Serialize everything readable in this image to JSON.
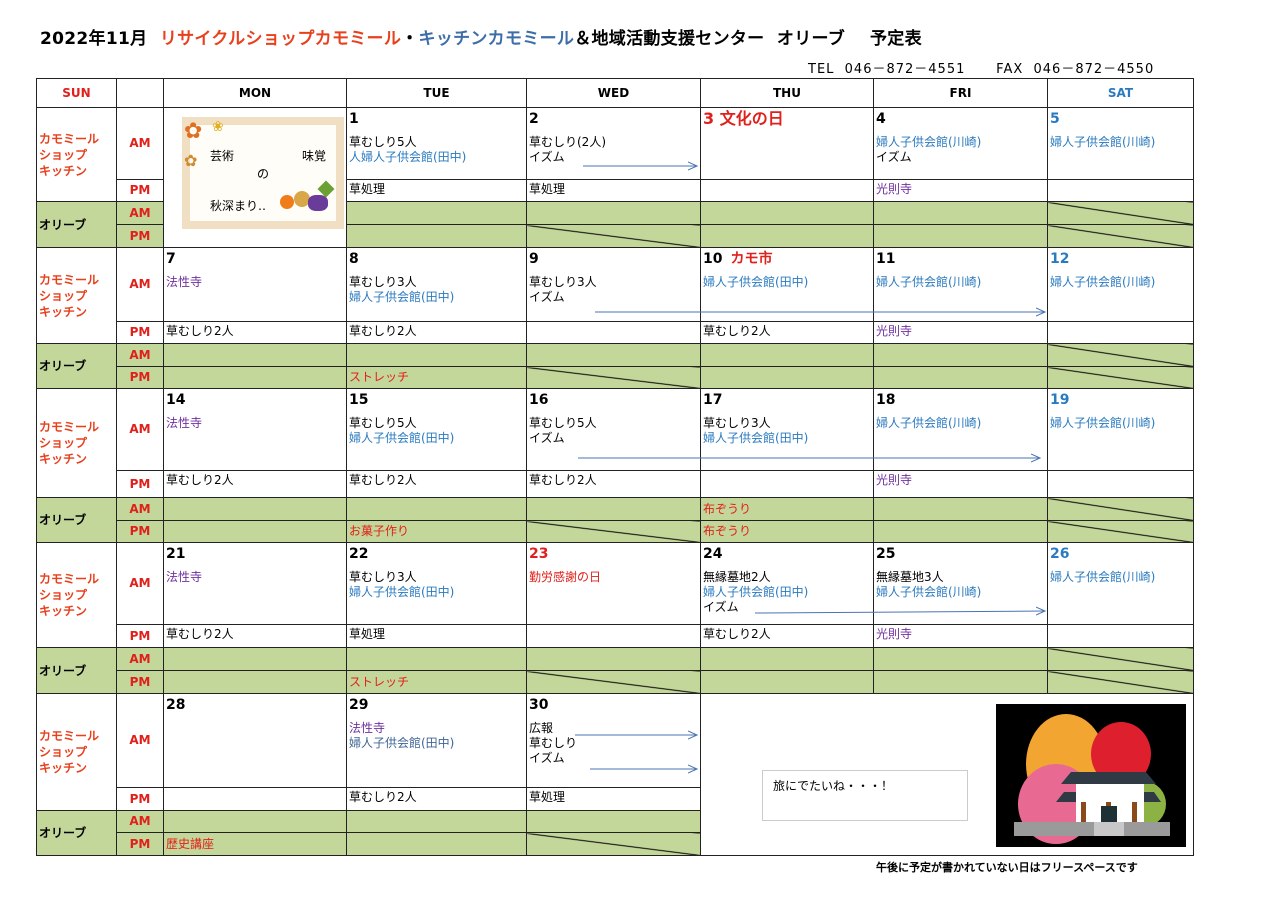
{
  "header": {
    "title_parts": [
      {
        "t": "2022年11月  ",
        "c": "black"
      },
      {
        "t": "リサイクルショップカモミール",
        "c": "orange"
      },
      {
        "t": "・",
        "c": "black"
      },
      {
        "t": "キッチンカモミール",
        "c": "titleblue"
      },
      {
        "t": "＆地域活動支援センター  オリーブ    予定表",
        "c": "black"
      }
    ],
    "contact": "TEL  046－872－4551      FAX  046－872－4550"
  },
  "colors": {
    "black": "#000000",
    "orange": "#e8401c",
    "titleblue": "#3d6ea8",
    "blue": "#2a7ac0",
    "slate": "#3f6596",
    "purple": "#7030a0",
    "red": "#e0201a",
    "olive": "#c4d79b"
  },
  "columns": [
    {
      "label": "SUN",
      "c": "red"
    },
    {
      "label": "",
      "c": "black"
    },
    {
      "label": "MON",
      "c": "black"
    },
    {
      "label": "TUE",
      "c": "black"
    },
    {
      "label": "WED",
      "c": "black"
    },
    {
      "label": "THU",
      "c": "black"
    },
    {
      "label": "FRI",
      "c": "black"
    },
    {
      "label": "SAT",
      "c": "blue"
    }
  ],
  "labels": {
    "kamomile": "カモミール\nショップ\nキッチン",
    "olive": "オリーブ",
    "am": "AM",
    "pm": "PM"
  },
  "decoration": {
    "t1": "芸術",
    "t2": "味覚",
    "t3": "の",
    "t4": "秋深まり‥"
  },
  "weeks": [
    {
      "days": [
        {
          "span": "decoration"
        },
        {
          "date": "1",
          "am": [
            {
              "t": "草むしり5人",
              "c": "black"
            },
            {
              "t": "人婦人子供会館(田中)",
              "c": "blue"
            }
          ],
          "pm": [
            {
              "t": "草処理",
              "c": "black"
            }
          ]
        },
        {
          "date": "2",
          "am": [
            {
              "t": "草むしり(2人)",
              "c": "black"
            },
            {
              "t": "イズム",
              "c": "black"
            }
          ],
          "pm": [
            {
              "t": "草処理",
              "c": "black"
            }
          ],
          "olive_pm_closed": true
        },
        {
          "date": "3 文化の日",
          "date_c": "red",
          "date_big": true,
          "am": [],
          "pm": []
        },
        {
          "date": "4",
          "am": [
            {
              "t": "婦人子供会館(川崎)",
              "c": "blue"
            },
            {
              "t": "イズム",
              "c": "black"
            }
          ],
          "pm": [
            {
              "t": "光則寺",
              "c": "purple"
            }
          ]
        },
        {
          "date": "5",
          "date_c": "blue",
          "am": [
            {
              "t": "婦人子供会館(川崎)",
              "c": "blue"
            }
          ],
          "pm": [],
          "olive_am_closed": true,
          "olive_pm_closed": true
        }
      ]
    },
    {
      "days": [
        {
          "date": "7",
          "am": [
            {
              "t": "法性寺",
              "c": "purple"
            }
          ],
          "pm": [
            {
              "t": "草むしり2人",
              "c": "black"
            }
          ]
        },
        {
          "date": "8",
          "am": [
            {
              "t": "草むしり3人",
              "c": "black"
            },
            {
              "t": "婦人子供会館(田中)",
              "c": "blue"
            }
          ],
          "pm": [
            {
              "t": "草むしり2人",
              "c": "black"
            }
          ],
          "olive_pm": [
            {
              "t": "ストレッチ",
              "c": "red"
            }
          ]
        },
        {
          "date": "9",
          "am": [
            {
              "t": "草むしり3人",
              "c": "black"
            },
            {
              "t": "イズム",
              "c": "black"
            }
          ],
          "pm": [],
          "olive_pm_closed": true
        },
        {
          "date": "10",
          "event": "カモ市",
          "am": [
            {
              "t": "婦人子供会館(田中)",
              "c": "blue"
            }
          ],
          "pm": [
            {
              "t": "草むしり2人",
              "c": "black"
            }
          ]
        },
        {
          "date": "11",
          "am": [
            {
              "t": "婦人子供会館(川崎)",
              "c": "blue"
            }
          ],
          "pm": [
            {
              "t": "光則寺",
              "c": "purple"
            }
          ]
        },
        {
          "date": "12",
          "date_c": "blue",
          "am": [
            {
              "t": "婦人子供会館(川崎)",
              "c": "blue"
            }
          ],
          "pm": [],
          "olive_am_closed": true,
          "olive_pm_closed": true
        }
      ]
    },
    {
      "days": [
        {
          "date": "14",
          "am": [
            {
              "t": "法性寺",
              "c": "purple"
            }
          ],
          "pm": [
            {
              "t": "草むしり2人",
              "c": "black"
            }
          ]
        },
        {
          "date": "15",
          "am": [
            {
              "t": "草むしり5人",
              "c": "black"
            },
            {
              "t": "婦人子供会館(田中)",
              "c": "blue"
            }
          ],
          "pm": [
            {
              "t": "草むしり2人",
              "c": "black"
            }
          ],
          "olive_pm": [
            {
              "t": "お菓子作り",
              "c": "red"
            }
          ]
        },
        {
          "date": "16",
          "am": [
            {
              "t": "草むしり5人",
              "c": "black"
            },
            {
              "t": "イズム",
              "c": "black"
            }
          ],
          "pm": [
            {
              "t": "草むしり2人",
              "c": "black"
            }
          ],
          "olive_pm_closed": true
        },
        {
          "date": "17",
          "am": [
            {
              "t": "草むしり3人",
              "c": "black"
            },
            {
              "t": "婦人子供会館(田中)",
              "c": "blue"
            }
          ],
          "pm": [],
          "olive_am": [
            {
              "t": "布ぞうり",
              "c": "red"
            }
          ],
          "olive_pm": [
            {
              "t": "布ぞうり",
              "c": "red"
            }
          ]
        },
        {
          "date": "18",
          "am": [
            {
              "t": "婦人子供会館(川崎)",
              "c": "blue"
            }
          ],
          "pm": [
            {
              "t": "光則寺",
              "c": "purple"
            }
          ]
        },
        {
          "date": "19",
          "date_c": "blue",
          "am": [
            {
              "t": "婦人子供会館(川崎)",
              "c": "blue"
            }
          ],
          "pm": [],
          "olive_am_closed": true,
          "olive_pm_closed": true
        }
      ]
    },
    {
      "days": [
        {
          "date": "21",
          "am": [
            {
              "t": "法性寺",
              "c": "purple"
            }
          ],
          "pm": [
            {
              "t": "草むしり2人",
              "c": "black"
            }
          ]
        },
        {
          "date": "22",
          "am": [
            {
              "t": "草むしり3人",
              "c": "black"
            },
            {
              "t": "婦人子供会館(田中)",
              "c": "blue"
            }
          ],
          "pm": [
            {
              "t": "草処理",
              "c": "black"
            }
          ],
          "olive_pm": [
            {
              "t": "ストレッチ",
              "c": "red"
            }
          ]
        },
        {
          "date": "23",
          "date_c": "red",
          "am": [
            {
              "t": "勤労感謝の日",
              "c": "red"
            }
          ],
          "pm": [],
          "olive_pm_closed": true
        },
        {
          "date": "24",
          "am": [
            {
              "t": "無縁墓地2人",
              "c": "black"
            },
            {
              "t": "婦人子供会館(田中)",
              "c": "blue"
            },
            {
              "t": "イズム",
              "c": "black"
            }
          ],
          "pm": [
            {
              "t": "草むしり2人",
              "c": "black"
            }
          ]
        },
        {
          "date": "25",
          "am": [
            {
              "t": "無縁墓地3人",
              "c": "black"
            },
            {
              "t": "婦人子供会館(川崎)",
              "c": "blue"
            }
          ],
          "pm": [
            {
              "t": "光則寺",
              "c": "purple"
            }
          ]
        },
        {
          "date": "26",
          "date_c": "blue",
          "am": [
            {
              "t": "婦人子供会館(川崎)",
              "c": "blue"
            }
          ],
          "pm": [],
          "olive_am_closed": true,
          "olive_pm_closed": true
        }
      ]
    },
    {
      "days": [
        {
          "date": "28",
          "am": [],
          "pm": [],
          "olive_pm": [
            {
              "t": "歴史講座",
              "c": "red"
            }
          ]
        },
        {
          "date": "29",
          "am": [
            {
              "t": "法性寺",
              "c": "purple"
            },
            {
              "t": "婦人子供会館(田中)",
              "c": "slate"
            }
          ],
          "pm": [
            {
              "t": "草むしり2人",
              "c": "black"
            }
          ]
        },
        {
          "date": "30",
          "am": [
            {
              "t": "広報",
              "c": "black"
            },
            {
              "t": "草むしり",
              "c": "black"
            },
            {
              "t": "イズム",
              "c": "black"
            }
          ],
          "pm": [
            {
              "t": "草処理",
              "c": "black"
            }
          ],
          "olive_pm_closed": true
        },
        {
          "span": "free"
        },
        {
          "skip": true
        },
        {
          "skip": true
        }
      ]
    }
  ],
  "note": "旅にでたいね・・・！",
  "footer": "午後に予定が書かれていない日はフリースペースです"
}
